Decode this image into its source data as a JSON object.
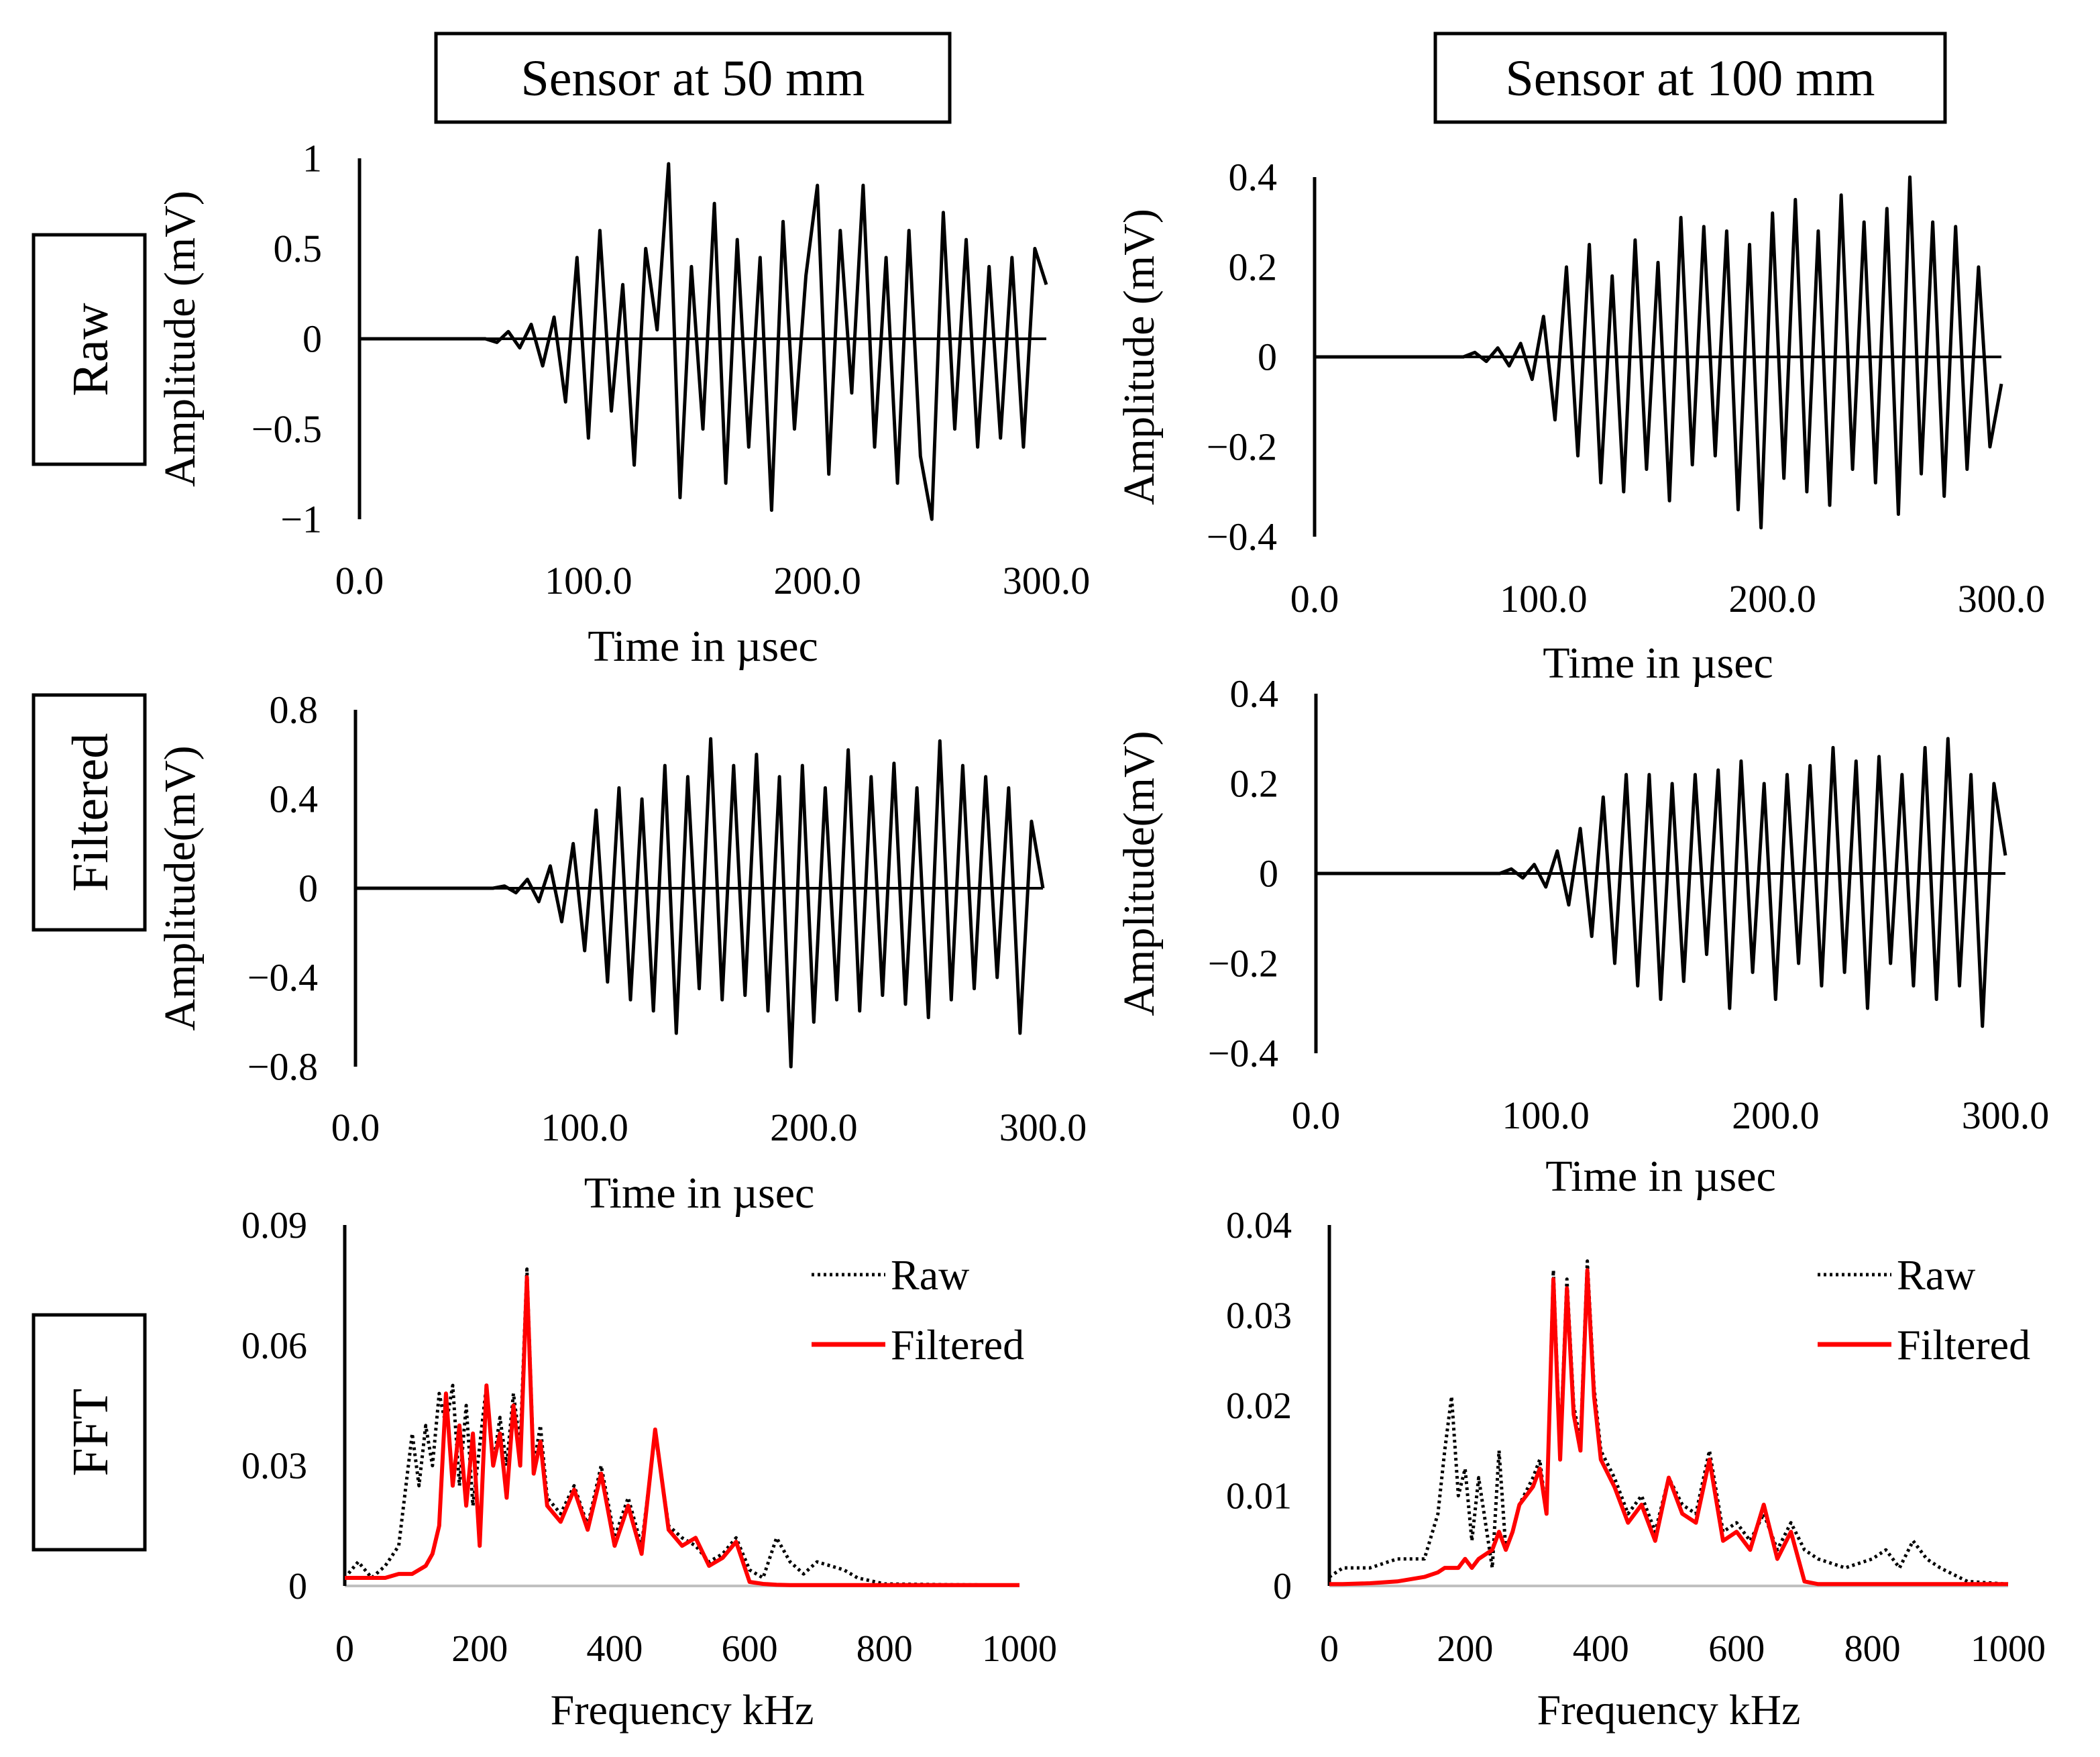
{
  "column_headers": [
    "Sensor at 50 mm",
    "Sensor at 100 mm"
  ],
  "row_labels": [
    "Raw",
    "Filtered",
    "FFT"
  ],
  "colors": {
    "raw_trace": "#000000",
    "filtered_trace": "#ff0000",
    "fft_raw": "#000000",
    "zero_line": "#c0c0c0"
  },
  "chart_data": [
    {
      "id": "raw-50",
      "type": "line",
      "panel": "Raw / Sensor at 50 mm",
      "xlabel": "Time in µsec",
      "ylabel": "Amplitude (mV)",
      "xlim": [
        0,
        300
      ],
      "ylim": [
        -1,
        1
      ],
      "xticks": [
        0,
        100,
        200,
        300
      ],
      "xtick_labels": [
        "0.0",
        "100.0",
        "200.0",
        "300.0"
      ],
      "yticks": [
        -1,
        -0.5,
        0,
        0.5,
        1
      ],
      "ytick_labels": [
        "−1",
        "−0.5",
        "0",
        "0.5",
        "1"
      ],
      "x": [
        0,
        55,
        60,
        65,
        70,
        75,
        80,
        85,
        90,
        95,
        100,
        105,
        110,
        115,
        120,
        125,
        130,
        135,
        140,
        145,
        150,
        155,
        160,
        165,
        170,
        175,
        180,
        185,
        190,
        195,
        200,
        205,
        210,
        215,
        220,
        225,
        230,
        235,
        240,
        245,
        250,
        255,
        260,
        265,
        270,
        275,
        280,
        285,
        290,
        295,
        300
      ],
      "values": [
        0,
        0,
        -0.02,
        0.04,
        -0.05,
        0.08,
        -0.15,
        0.12,
        -0.35,
        0.45,
        -0.55,
        0.6,
        -0.4,
        0.3,
        -0.7,
        0.5,
        0.05,
        0.97,
        -0.88,
        0.4,
        -0.5,
        0.75,
        -0.8,
        0.55,
        -0.6,
        0.45,
        -0.95,
        0.65,
        -0.5,
        0.35,
        0.85,
        -0.75,
        0.6,
        -0.3,
        0.85,
        -0.6,
        0.45,
        -0.8,
        0.6,
        -0.65,
        -1.0,
        0.7,
        -0.5,
        0.55,
        -0.6,
        0.4,
        -0.55,
        0.45,
        -0.6,
        0.5,
        0.3
      ]
    },
    {
      "id": "raw-100",
      "type": "line",
      "panel": "Raw / Sensor at 100 mm",
      "xlabel": "Time in µsec",
      "ylabel": "Amplitude (mV)",
      "xlim": [
        0,
        300
      ],
      "ylim": [
        -0.4,
        0.4
      ],
      "xticks": [
        0,
        100,
        200,
        300
      ],
      "xtick_labels": [
        "0.0",
        "100.0",
        "200.0",
        "300.0"
      ],
      "yticks": [
        -0.4,
        -0.2,
        0,
        0.2,
        0.4
      ],
      "ytick_labels": [
        "−0.4",
        "−0.2",
        "0",
        "0.2",
        "0.4"
      ],
      "x": [
        0,
        65,
        70,
        75,
        80,
        85,
        90,
        95,
        100,
        105,
        110,
        115,
        120,
        125,
        130,
        135,
        140,
        145,
        150,
        155,
        160,
        165,
        170,
        175,
        180,
        185,
        190,
        195,
        200,
        205,
        210,
        215,
        220,
        225,
        230,
        235,
        240,
        245,
        250,
        255,
        260,
        265,
        270,
        275,
        280,
        285,
        290,
        295,
        300
      ],
      "values": [
        0,
        0,
        0.01,
        -0.01,
        0.02,
        -0.02,
        0.03,
        -0.05,
        0.09,
        -0.14,
        0.2,
        -0.22,
        0.25,
        -0.28,
        0.18,
        -0.3,
        0.26,
        -0.25,
        0.21,
        -0.32,
        0.31,
        -0.24,
        0.29,
        -0.22,
        0.28,
        -0.34,
        0.25,
        -0.38,
        0.32,
        -0.27,
        0.35,
        -0.3,
        0.28,
        -0.33,
        0.36,
        -0.25,
        0.3,
        -0.28,
        0.33,
        -0.35,
        0.4,
        -0.26,
        0.3,
        -0.31,
        0.29,
        -0.25,
        0.2,
        -0.2,
        -0.06
      ]
    },
    {
      "id": "filtered-50",
      "type": "line",
      "panel": "Filtered / Sensor at 50 mm",
      "xlabel": "Time in µsec",
      "ylabel": "Amplitude(mV)",
      "xlim": [
        0,
        300
      ],
      "ylim": [
        -0.8,
        0.8
      ],
      "xticks": [
        0,
        100,
        200,
        300
      ],
      "xtick_labels": [
        "0.0",
        "100.0",
        "200.0",
        "300.0"
      ],
      "yticks": [
        -0.8,
        -0.4,
        0,
        0.4,
        0.8
      ],
      "ytick_labels": [
        "−0.8",
        "−0.4",
        "0",
        "0.4",
        "0.8"
      ],
      "x": [
        0,
        60,
        65,
        70,
        75,
        80,
        85,
        90,
        95,
        100,
        105,
        110,
        115,
        120,
        125,
        130,
        135,
        140,
        145,
        150,
        155,
        160,
        165,
        170,
        175,
        180,
        185,
        190,
        195,
        200,
        205,
        210,
        215,
        220,
        225,
        230,
        235,
        240,
        245,
        250,
        255,
        260,
        265,
        270,
        275,
        280,
        285,
        290,
        295,
        300
      ],
      "values": [
        0,
        0,
        0.01,
        -0.02,
        0.04,
        -0.06,
        0.1,
        -0.15,
        0.2,
        -0.28,
        0.35,
        -0.42,
        0.45,
        -0.5,
        0.4,
        -0.55,
        0.55,
        -0.65,
        0.5,
        -0.45,
        0.67,
        -0.5,
        0.55,
        -0.48,
        0.6,
        -0.55,
        0.5,
        -0.8,
        0.55,
        -0.6,
        0.45,
        -0.5,
        0.62,
        -0.55,
        0.5,
        -0.48,
        0.56,
        -0.52,
        0.45,
        -0.58,
        0.66,
        -0.5,
        0.55,
        -0.45,
        0.5,
        -0.4,
        0.45,
        -0.65,
        0.3,
        0.0
      ]
    },
    {
      "id": "filtered-100",
      "type": "line",
      "panel": "Filtered / Sensor at 100 mm",
      "xlabel": "Time in µsec",
      "ylabel": "Amplitude(mV)",
      "xlim": [
        0,
        300
      ],
      "ylim": [
        -0.4,
        0.4
      ],
      "xticks": [
        0,
        100,
        200,
        300
      ],
      "xtick_labels": [
        "0.0",
        "100.0",
        "200.0",
        "300.0"
      ],
      "yticks": [
        -0.4,
        -0.2,
        0,
        0.2,
        0.4
      ],
      "ytick_labels": [
        "−0.4",
        "−0.2",
        "0",
        "0.2",
        "0.4"
      ],
      "x": [
        0,
        80,
        85,
        90,
        95,
        100,
        105,
        110,
        115,
        120,
        125,
        130,
        135,
        140,
        145,
        150,
        155,
        160,
        165,
        170,
        175,
        180,
        185,
        190,
        195,
        200,
        205,
        210,
        215,
        220,
        225,
        230,
        235,
        240,
        245,
        250,
        255,
        260,
        265,
        270,
        275,
        280,
        285,
        290,
        295,
        300
      ],
      "values": [
        0,
        0,
        0.01,
        -0.01,
        0.02,
        -0.03,
        0.05,
        -0.07,
        0.1,
        -0.14,
        0.17,
        -0.2,
        0.22,
        -0.25,
        0.22,
        -0.28,
        0.2,
        -0.24,
        0.22,
        -0.18,
        0.23,
        -0.3,
        0.25,
        -0.22,
        0.2,
        -0.28,
        0.22,
        -0.2,
        0.24,
        -0.25,
        0.28,
        -0.22,
        0.25,
        -0.3,
        0.26,
        -0.2,
        0.22,
        -0.25,
        0.28,
        -0.28,
        0.3,
        -0.25,
        0.22,
        -0.34,
        0.2,
        0.04
      ]
    },
    {
      "id": "fft-50",
      "type": "line",
      "panel": "FFT / Sensor at 50 mm",
      "xlabel": "Frequency kHz",
      "ylabel": "",
      "xlim": [
        0,
        1000
      ],
      "ylim": [
        0,
        0.09
      ],
      "xticks": [
        0,
        200,
        400,
        600,
        800,
        1000
      ],
      "xtick_labels": [
        "0",
        "200",
        "400",
        "600",
        "800",
        "1000"
      ],
      "yticks": [
        0,
        0.03,
        0.06,
        0.09
      ],
      "ytick_labels": [
        "0",
        "0.03",
        "0.06",
        "0.09"
      ],
      "legend": {
        "entries": [
          "Raw",
          "Filtered"
        ],
        "position": "top-right"
      },
      "x": [
        0,
        20,
        40,
        60,
        80,
        100,
        110,
        120,
        130,
        140,
        150,
        160,
        170,
        180,
        190,
        200,
        210,
        220,
        230,
        240,
        250,
        260,
        270,
        280,
        290,
        300,
        320,
        340,
        360,
        380,
        400,
        420,
        440,
        460,
        480,
        500,
        520,
        540,
        560,
        580,
        600,
        620,
        640,
        660,
        680,
        700,
        720,
        740,
        760,
        800,
        900,
        1000
      ],
      "series": [
        {
          "name": "Raw",
          "values": [
            0.002,
            0.006,
            0.002,
            0.005,
            0.01,
            0.038,
            0.025,
            0.04,
            0.03,
            0.048,
            0.04,
            0.05,
            0.025,
            0.045,
            0.02,
            0.035,
            0.05,
            0.03,
            0.042,
            0.03,
            0.048,
            0.035,
            0.079,
            0.03,
            0.04,
            0.022,
            0.018,
            0.025,
            0.015,
            0.03,
            0.012,
            0.022,
            0.01,
            0.038,
            0.015,
            0.012,
            0.01,
            0.006,
            0.008,
            0.012,
            0.004,
            0.002,
            0.012,
            0.006,
            0.003,
            0.006,
            0.005,
            0.004,
            0.002,
            0.0005,
            0.0003,
            0.0002
          ]
        },
        {
          "name": "Filtered",
          "values": [
            0.002,
            0.002,
            0.002,
            0.002,
            0.003,
            0.003,
            0.004,
            0.005,
            0.008,
            0.015,
            0.048,
            0.025,
            0.04,
            0.02,
            0.038,
            0.01,
            0.05,
            0.03,
            0.038,
            0.022,
            0.045,
            0.03,
            0.077,
            0.028,
            0.036,
            0.02,
            0.016,
            0.024,
            0.014,
            0.028,
            0.01,
            0.02,
            0.008,
            0.039,
            0.014,
            0.01,
            0.012,
            0.005,
            0.007,
            0.011,
            0.001,
            0.0005,
            0.0003,
            0.0002,
            0.0002,
            0.0002,
            0.0002,
            0.0002,
            0.0002,
            0.0002,
            0.0002,
            0.0002
          ]
        }
      ]
    },
    {
      "id": "fft-100",
      "type": "line",
      "panel": "FFT / Sensor at 100 mm",
      "xlabel": "Frequency kHz",
      "ylabel": "",
      "xlim": [
        0,
        1000
      ],
      "ylim": [
        0,
        0.04
      ],
      "xticks": [
        0,
        200,
        400,
        600,
        800,
        1000
      ],
      "xtick_labels": [
        "0",
        "200",
        "400",
        "600",
        "800",
        "1000"
      ],
      "yticks": [
        0,
        0.01,
        0.02,
        0.03,
        0.04
      ],
      "ytick_labels": [
        "0",
        "0.01",
        "0.02",
        "0.03",
        "0.04"
      ],
      "legend": {
        "entries": [
          "Raw",
          "Filtered"
        ],
        "position": "top-right"
      },
      "x": [
        0,
        20,
        60,
        100,
        140,
        160,
        170,
        180,
        190,
        200,
        210,
        220,
        240,
        250,
        260,
        270,
        280,
        300,
        310,
        320,
        330,
        340,
        350,
        360,
        370,
        380,
        390,
        400,
        420,
        440,
        460,
        480,
        500,
        520,
        540,
        560,
        580,
        600,
        620,
        640,
        660,
        680,
        700,
        720,
        760,
        800,
        820,
        840,
        860,
        880,
        900,
        940,
        1000
      ],
      "series": [
        {
          "name": "Raw",
          "values": [
            0.001,
            0.002,
            0.002,
            0.003,
            0.003,
            0.008,
            0.015,
            0.021,
            0.01,
            0.013,
            0.005,
            0.012,
            0.002,
            0.015,
            0.004,
            0.006,
            0.009,
            0.012,
            0.014,
            0.008,
            0.035,
            0.015,
            0.034,
            0.02,
            0.016,
            0.036,
            0.022,
            0.015,
            0.012,
            0.008,
            0.01,
            0.006,
            0.012,
            0.009,
            0.008,
            0.015,
            0.006,
            0.007,
            0.005,
            0.008,
            0.004,
            0.007,
            0.004,
            0.003,
            0.002,
            0.003,
            0.004,
            0.002,
            0.005,
            0.003,
            0.002,
            0.0005,
            0.0002
          ]
        },
        {
          "name": "Filtered",
          "values": [
            0.0002,
            0.0002,
            0.0003,
            0.0005,
            0.001,
            0.0015,
            0.002,
            0.002,
            0.002,
            0.003,
            0.002,
            0.003,
            0.004,
            0.006,
            0.004,
            0.006,
            0.009,
            0.011,
            0.013,
            0.008,
            0.034,
            0.014,
            0.033,
            0.019,
            0.015,
            0.035,
            0.021,
            0.014,
            0.011,
            0.007,
            0.009,
            0.005,
            0.012,
            0.008,
            0.007,
            0.014,
            0.005,
            0.006,
            0.004,
            0.009,
            0.003,
            0.006,
            0.0005,
            0.0002,
            0.0002,
            0.0002,
            0.0002,
            0.0002,
            0.0002,
            0.0002,
            0.0002,
            0.0002,
            0.0002
          ]
        }
      ]
    }
  ]
}
